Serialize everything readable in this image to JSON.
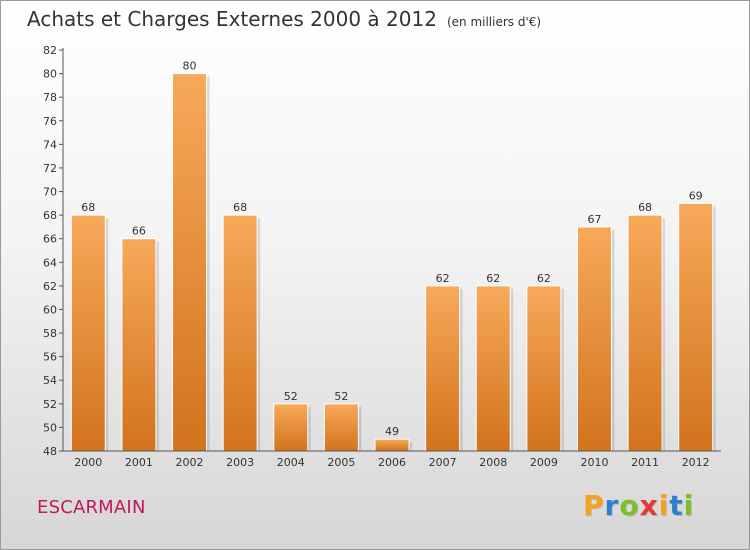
{
  "header": {
    "title": "Achats et Charges Externes 2000 à 2012",
    "subtitle": "(en milliers d'€)"
  },
  "footer": {
    "commune": "ESCARMAIN",
    "brand": "Proxiti"
  },
  "colors": {
    "bar_top": "#f7a95a",
    "bar_bottom": "#d2731d",
    "commune": "#c2185b",
    "brand_letters": [
      "#f4a21e",
      "#2d7fd0",
      "#7cbf2a",
      "#e53935",
      "#f4a21e",
      "#2d7fd0",
      "#7cbf2a"
    ]
  },
  "chart_data": {
    "type": "bar",
    "categories": [
      "2000",
      "2001",
      "2002",
      "2003",
      "2004",
      "2005",
      "2006",
      "2007",
      "2008",
      "2009",
      "2010",
      "2011",
      "2012"
    ],
    "values": [
      68,
      66,
      80,
      68,
      52,
      52,
      49,
      62,
      62,
      62,
      67,
      68,
      69
    ],
    "ylim": [
      48,
      82
    ],
    "yticks": [
      48,
      50,
      52,
      54,
      56,
      58,
      60,
      62,
      64,
      66,
      68,
      70,
      72,
      74,
      76,
      78,
      80,
      82
    ],
    "grid": false,
    "legend": "none"
  }
}
